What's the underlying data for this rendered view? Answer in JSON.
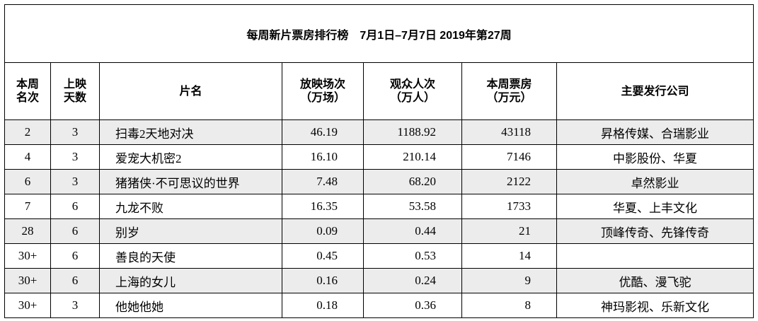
{
  "title": "每周新片票房排行榜　7月1日–7月7日  2019年第27周",
  "headers": {
    "rank": [
      "本周",
      "名次"
    ],
    "days": [
      "上映",
      "天数"
    ],
    "film": [
      "片名"
    ],
    "screenings": [
      "放映场次",
      "（万场）"
    ],
    "admissions": [
      "观众人次",
      "（万人）"
    ],
    "boxoffice": [
      "本周票房",
      "（万元）"
    ],
    "distributor": [
      "主要发行公司"
    ]
  },
  "rows": [
    {
      "rank": "2",
      "days": "3",
      "film": "扫毒2天地对决",
      "screenings": "46.19",
      "admissions": "1188.92",
      "boxoffice": "43118",
      "distributor": "昇格传媒、合瑞影业"
    },
    {
      "rank": "4",
      "days": "3",
      "film": "爱宠大机密2",
      "screenings": "16.10",
      "admissions": "210.14",
      "boxoffice": "7146",
      "distributor": "中影股份、华夏"
    },
    {
      "rank": "6",
      "days": "3",
      "film": "猪猪侠·不可思议的世界",
      "screenings": "7.48",
      "admissions": "68.20",
      "boxoffice": "2122",
      "distributor": "卓然影业"
    },
    {
      "rank": "7",
      "days": "6",
      "film": "九龙不败",
      "screenings": "16.35",
      "admissions": "53.58",
      "boxoffice": "1733",
      "distributor": "华夏、上丰文化"
    },
    {
      "rank": "28",
      "days": "6",
      "film": "别岁",
      "screenings": "0.09",
      "admissions": "0.44",
      "boxoffice": "21",
      "distributor": "顶峰传奇、先锋传奇"
    },
    {
      "rank": "30+",
      "days": "6",
      "film": "善良的天使",
      "screenings": "0.45",
      "admissions": "0.53",
      "boxoffice": "14",
      "distributor": ""
    },
    {
      "rank": "30+",
      "days": "6",
      "film": "上海的女儿",
      "screenings": "0.16",
      "admissions": "0.24",
      "boxoffice": "9",
      "distributor": "优酷、漫飞驼"
    },
    {
      "rank": "30+",
      "days": "3",
      "film": "他她他她",
      "screenings": "0.18",
      "admissions": "0.36",
      "boxoffice": "8",
      "distributor": "神玛影视、乐新文化"
    }
  ],
  "colors": {
    "shaded_row": "#ececec",
    "border": "#000000"
  }
}
